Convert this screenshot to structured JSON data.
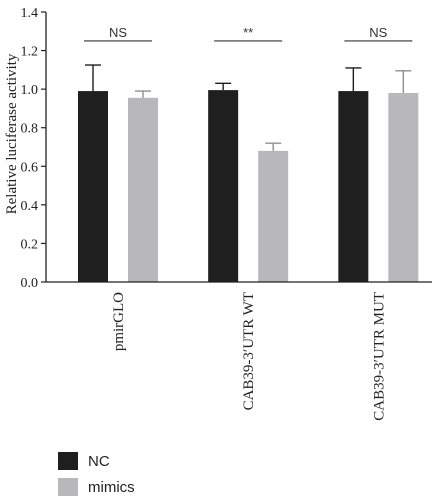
{
  "chart_data": {
    "type": "bar",
    "title": "",
    "xlabel": "",
    "ylabel": "Relative luciferase activity",
    "ylim": [
      0,
      1.4
    ],
    "yticks": [
      "0.0",
      "0.2",
      "0.4",
      "0.6",
      "0.8",
      "1.0",
      "1.2",
      "1.4"
    ],
    "categories": [
      "pmirGLO",
      "CAB39-3′UTR WT",
      "CAB39-3′UTR MUT"
    ],
    "series": [
      {
        "name": "NC",
        "values": [
          0.99,
          0.995,
          0.99
        ],
        "errors": [
          0.135,
          0.035,
          0.12
        ],
        "color": "#1f1f1f"
      },
      {
        "name": "mimics",
        "values": [
          0.955,
          0.68,
          0.98
        ],
        "errors": [
          0.035,
          0.04,
          0.115
        ],
        "color": "#b8b8bc"
      }
    ],
    "significance": [
      "NS",
      "**",
      "NS"
    ],
    "legend_position": "bottom-left",
    "grid": false
  }
}
